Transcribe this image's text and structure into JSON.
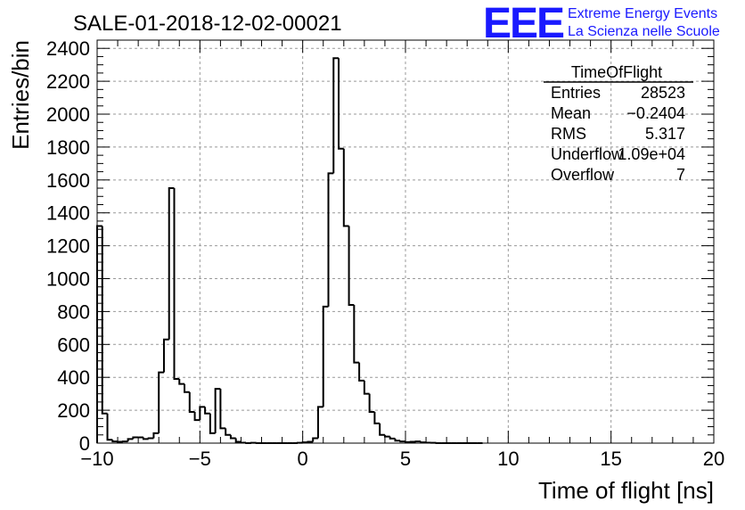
{
  "chart_data": {
    "type": "bar",
    "title": "SALE-01-2018-12-02-00021",
    "xlabel": "Time of flight [ns]",
    "ylabel": "Entries/bin",
    "xlim": [
      -10,
      20
    ],
    "ylim": [
      0,
      2450
    ],
    "grid": true,
    "bin_width": 0.25,
    "xticks": [
      "−10",
      "−5",
      "0",
      "5",
      "10",
      "15",
      "20"
    ],
    "xtick_values": [
      -10,
      -5,
      0,
      5,
      10,
      15,
      20
    ],
    "yticks": [
      "0",
      "200",
      "400",
      "600",
      "800",
      "1000",
      "1200",
      "1400",
      "1600",
      "1800",
      "2000",
      "2200",
      "2400"
    ],
    "ytick_values": [
      0,
      200,
      400,
      600,
      800,
      1000,
      1200,
      1400,
      1600,
      1800,
      2000,
      2200,
      2400
    ],
    "series": [
      {
        "x": [
          -10,
          -9.75,
          -9.5,
          -9.25,
          -9,
          -8.75,
          -8.5,
          -8.25,
          -8,
          -7.75,
          -7.5,
          -7.25,
          -7,
          -6.75,
          -6.5,
          -6.25,
          -6,
          -5.75,
          -5.5,
          -5.25,
          -5,
          -4.75,
          -4.5,
          -4.25,
          -4,
          -3.75,
          -3.5,
          -3.25,
          -3,
          -2.75,
          -2.5,
          -2.25,
          -2,
          -1.75,
          -1.5,
          -1.25,
          -1,
          -0.75,
          -0.5,
          -0.25,
          0,
          0.25,
          0.5,
          0.75,
          1,
          1.25,
          1.5,
          1.75,
          2,
          2.25,
          2.5,
          2.75,
          3,
          3.25,
          3.5,
          3.75,
          4,
          4.25,
          4.5,
          4.75,
          5,
          5.25,
          5.5,
          5.75,
          6,
          6.25,
          6.5,
          6.75,
          7,
          7.25,
          7.5,
          7.75,
          8,
          8.25,
          8.5
        ],
        "values": [
          1320,
          180,
          20,
          10,
          8,
          10,
          25,
          35,
          35,
          25,
          30,
          60,
          430,
          630,
          1550,
          390,
          360,
          310,
          190,
          140,
          220,
          180,
          60,
          330,
          90,
          50,
          30,
          8,
          3,
          0,
          2,
          0,
          0,
          0,
          0,
          0,
          0,
          0,
          0,
          2,
          5,
          8,
          30,
          220,
          830,
          1640,
          2340,
          1790,
          1320,
          840,
          490,
          380,
          300,
          190,
          120,
          50,
          40,
          28,
          15,
          10,
          6,
          8,
          10,
          5,
          3,
          2,
          0,
          0,
          0,
          0,
          0,
          0,
          0,
          0,
          0
        ]
      }
    ]
  },
  "stats_box": {
    "title": "TimeOfFlight",
    "rows": [
      {
        "label": "Entries",
        "value": "28523"
      },
      {
        "label": "Mean",
        "value": "−0.2404"
      },
      {
        "label": "RMS",
        "value": "5.317"
      },
      {
        "label": "Underflow",
        "value": "1.09e+04"
      },
      {
        "label": "Overflow",
        "value": "7"
      }
    ]
  },
  "logo": {
    "text": "EEE",
    "line1": "Extreme Energy Events",
    "line2": "La Scienza nelle Scuole",
    "color": "#1a1aff"
  }
}
